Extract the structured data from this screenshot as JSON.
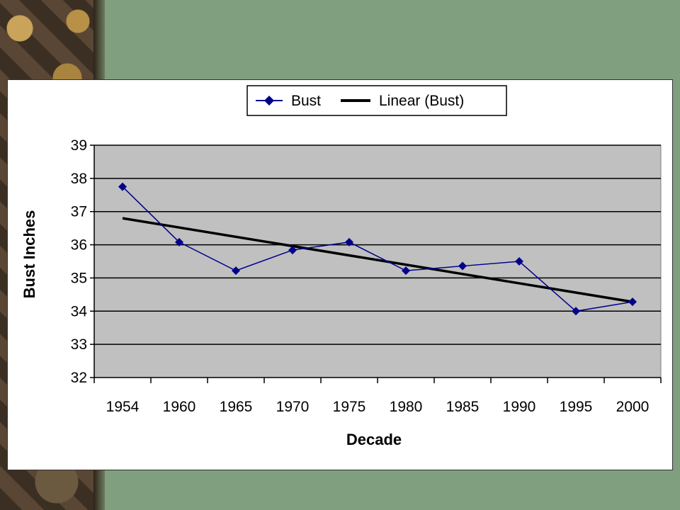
{
  "chart_data": {
    "type": "line",
    "categories": [
      "1954",
      "1960",
      "1965",
      "1970",
      "1975",
      "1980",
      "1985",
      "1990",
      "1995",
      "2000"
    ],
    "series": [
      {
        "name": "Bust",
        "values": [
          37.75,
          36.08,
          35.22,
          35.84,
          36.08,
          35.22,
          35.36,
          35.5,
          34.0,
          34.28
        ],
        "color": "#00008b"
      }
    ],
    "trendline": {
      "name": "Linear (Bust)",
      "start": 36.8,
      "end": 34.28,
      "color": "#000000"
    },
    "xlabel": "Decade",
    "ylabel": "Bust  Inches",
    "ylim": [
      32,
      39
    ],
    "yticks": [
      32,
      33,
      34,
      35,
      36,
      37,
      38,
      39
    ],
    "grid": true,
    "legend": "top-center",
    "plot_background": "#c0c0c0"
  }
}
